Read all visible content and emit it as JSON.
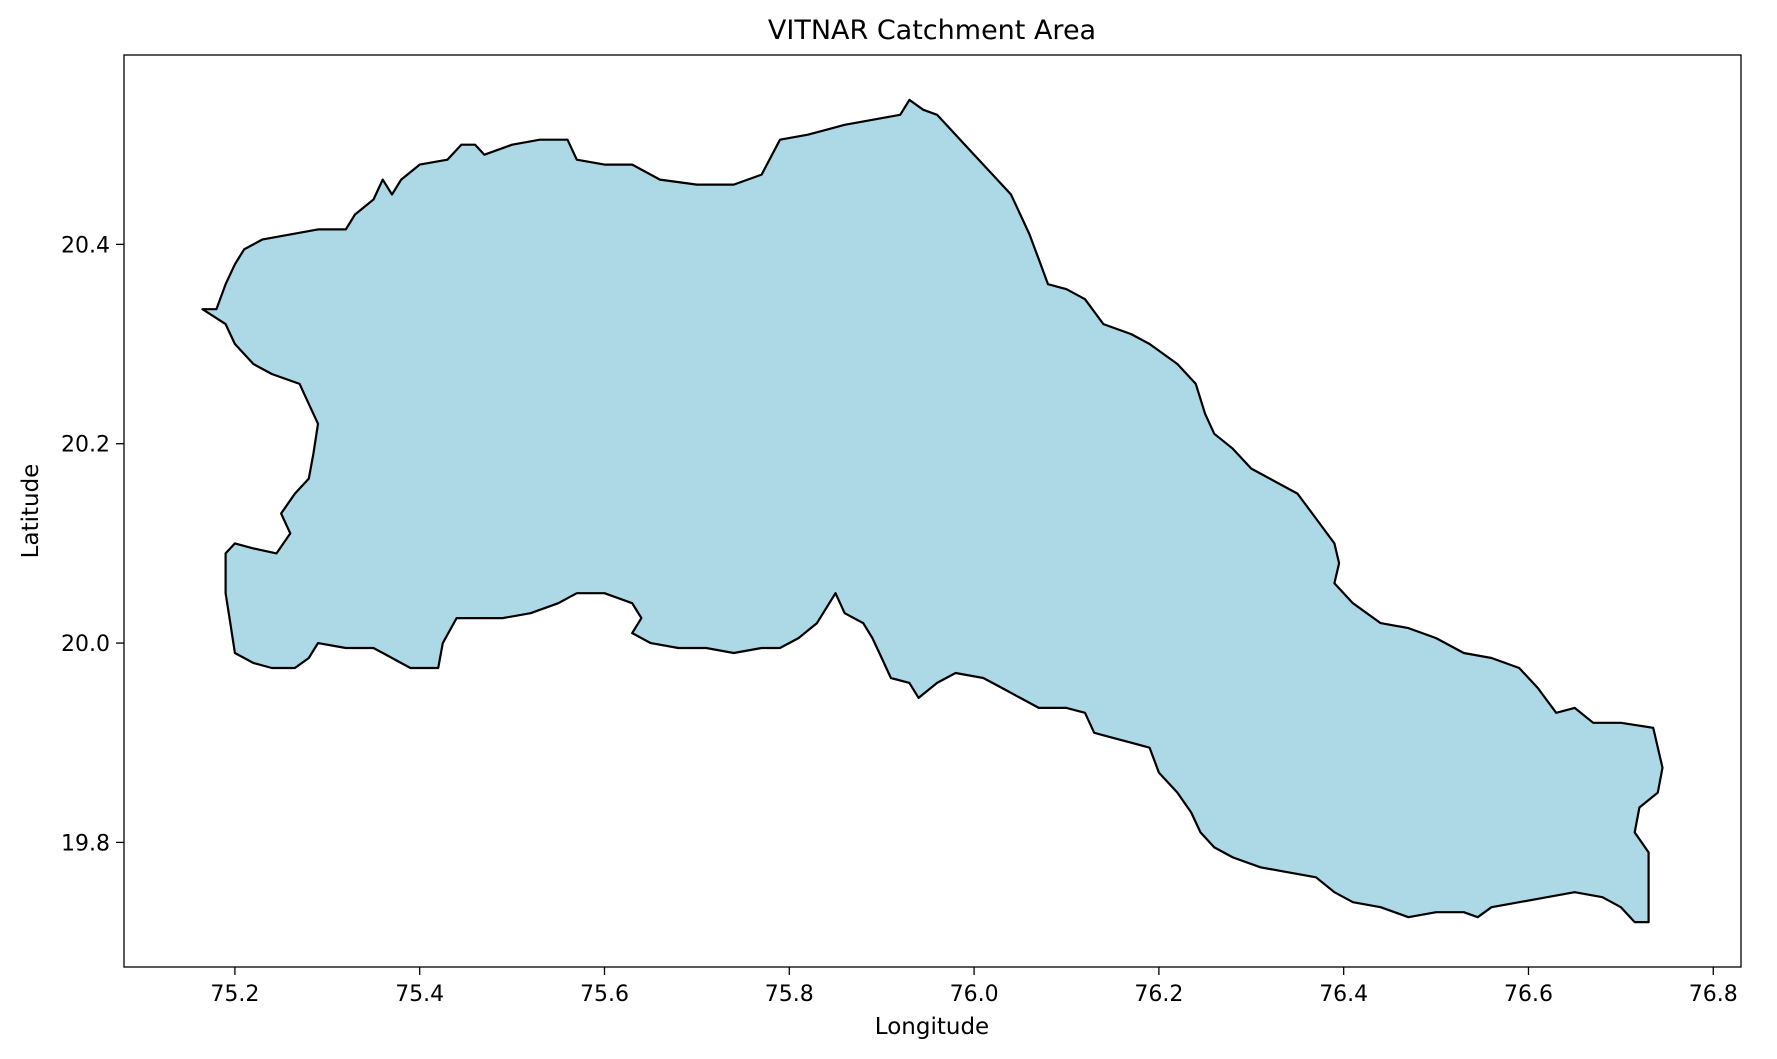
{
  "chart_data": {
    "type": "area",
    "title": "VITNAR Catchment Area",
    "xlabel": "Longitude",
    "ylabel": "Latitude",
    "xlim": [
      75.08,
      76.83
    ],
    "ylim": [
      19.675,
      20.59
    ],
    "xticks": [
      75.2,
      75.4,
      75.6,
      75.8,
      76.0,
      76.2,
      76.4,
      76.6,
      76.8
    ],
    "xtick_labels": [
      "75.2",
      "75.4",
      "75.6",
      "75.8",
      "76.0",
      "76.2",
      "76.4",
      "76.6",
      "76.8"
    ],
    "yticks": [
      19.8,
      20.0,
      20.2,
      20.4
    ],
    "ytick_labels": [
      "19.8",
      "20.0",
      "20.2",
      "20.4"
    ],
    "grid": false,
    "fill_color": "#add8e6",
    "edge_color": "#000000",
    "series": [
      {
        "points": [
          [
            75.165,
            20.335
          ],
          [
            75.18,
            20.335
          ],
          [
            75.19,
            20.36
          ],
          [
            75.2,
            20.38
          ],
          [
            75.21,
            20.395
          ],
          [
            75.23,
            20.405
          ],
          [
            75.26,
            20.41
          ],
          [
            75.29,
            20.415
          ],
          [
            75.32,
            20.415
          ],
          [
            75.33,
            20.43
          ],
          [
            75.35,
            20.445
          ],
          [
            75.36,
            20.465
          ],
          [
            75.37,
            20.45
          ],
          [
            75.38,
            20.465
          ],
          [
            75.4,
            20.48
          ],
          [
            75.43,
            20.485
          ],
          [
            75.445,
            20.5
          ],
          [
            75.46,
            20.5
          ],
          [
            75.47,
            20.49
          ],
          [
            75.5,
            20.5
          ],
          [
            75.53,
            20.505
          ],
          [
            75.56,
            20.505
          ],
          [
            75.57,
            20.485
          ],
          [
            75.6,
            20.48
          ],
          [
            75.63,
            20.48
          ],
          [
            75.66,
            20.465
          ],
          [
            75.7,
            20.46
          ],
          [
            75.74,
            20.46
          ],
          [
            75.77,
            20.47
          ],
          [
            75.79,
            20.505
          ],
          [
            75.82,
            20.51
          ],
          [
            75.84,
            20.515
          ],
          [
            75.86,
            20.52
          ],
          [
            75.89,
            20.525
          ],
          [
            75.92,
            20.53
          ],
          [
            75.93,
            20.545
          ],
          [
            75.945,
            20.535
          ],
          [
            75.96,
            20.53
          ],
          [
            75.98,
            20.51
          ],
          [
            76.0,
            20.49
          ],
          [
            76.02,
            20.47
          ],
          [
            76.04,
            20.45
          ],
          [
            76.06,
            20.41
          ],
          [
            76.07,
            20.385
          ],
          [
            76.08,
            20.36
          ],
          [
            76.1,
            20.355
          ],
          [
            76.12,
            20.345
          ],
          [
            76.14,
            20.32
          ],
          [
            76.17,
            20.31
          ],
          [
            76.19,
            20.3
          ],
          [
            76.22,
            20.28
          ],
          [
            76.24,
            20.26
          ],
          [
            76.25,
            20.23
          ],
          [
            76.26,
            20.21
          ],
          [
            76.28,
            20.195
          ],
          [
            76.3,
            20.175
          ],
          [
            76.33,
            20.16
          ],
          [
            76.35,
            20.15
          ],
          [
            76.37,
            20.125
          ],
          [
            76.39,
            20.1
          ],
          [
            76.395,
            20.08
          ],
          [
            76.39,
            20.06
          ],
          [
            76.41,
            20.04
          ],
          [
            76.44,
            20.02
          ],
          [
            76.47,
            20.015
          ],
          [
            76.5,
            20.005
          ],
          [
            76.53,
            19.99
          ],
          [
            76.56,
            19.985
          ],
          [
            76.59,
            19.975
          ],
          [
            76.61,
            19.955
          ],
          [
            76.63,
            19.93
          ],
          [
            76.65,
            19.935
          ],
          [
            76.67,
            19.92
          ],
          [
            76.7,
            19.92
          ],
          [
            76.735,
            19.915
          ],
          [
            76.745,
            19.875
          ],
          [
            76.74,
            19.85
          ],
          [
            76.72,
            19.835
          ],
          [
            76.715,
            19.81
          ],
          [
            76.73,
            19.79
          ],
          [
            76.73,
            19.72
          ],
          [
            76.715,
            19.72
          ],
          [
            76.7,
            19.735
          ],
          [
            76.68,
            19.745
          ],
          [
            76.65,
            19.75
          ],
          [
            76.62,
            19.745
          ],
          [
            76.59,
            19.74
          ],
          [
            76.56,
            19.735
          ],
          [
            76.545,
            19.725
          ],
          [
            76.53,
            19.73
          ],
          [
            76.5,
            19.73
          ],
          [
            76.47,
            19.725
          ],
          [
            76.44,
            19.735
          ],
          [
            76.41,
            19.74
          ],
          [
            76.39,
            19.75
          ],
          [
            76.37,
            19.765
          ],
          [
            76.34,
            19.77
          ],
          [
            76.31,
            19.775
          ],
          [
            76.28,
            19.785
          ],
          [
            76.26,
            19.795
          ],
          [
            76.245,
            19.81
          ],
          [
            76.235,
            19.83
          ],
          [
            76.22,
            19.85
          ],
          [
            76.2,
            19.87
          ],
          [
            76.19,
            19.895
          ],
          [
            76.17,
            19.9
          ],
          [
            76.15,
            19.905
          ],
          [
            76.13,
            19.91
          ],
          [
            76.12,
            19.93
          ],
          [
            76.1,
            19.935
          ],
          [
            76.07,
            19.935
          ],
          [
            76.05,
            19.945
          ],
          [
            76.03,
            19.955
          ],
          [
            76.01,
            19.965
          ],
          [
            75.98,
            19.97
          ],
          [
            75.96,
            19.96
          ],
          [
            75.94,
            19.945
          ],
          [
            75.93,
            19.96
          ],
          [
            75.91,
            19.965
          ],
          [
            75.9,
            19.985
          ],
          [
            75.89,
            20.005
          ],
          [
            75.88,
            20.02
          ],
          [
            75.86,
            20.03
          ],
          [
            75.85,
            20.05
          ],
          [
            75.84,
            20.035
          ],
          [
            75.83,
            20.02
          ],
          [
            75.81,
            20.005
          ],
          [
            75.79,
            19.995
          ],
          [
            75.77,
            19.995
          ],
          [
            75.74,
            19.99
          ],
          [
            75.71,
            19.995
          ],
          [
            75.68,
            19.995
          ],
          [
            75.65,
            20.0
          ],
          [
            75.63,
            20.01
          ],
          [
            75.64,
            20.025
          ],
          [
            75.63,
            20.04
          ],
          [
            75.6,
            20.05
          ],
          [
            75.57,
            20.05
          ],
          [
            75.55,
            20.04
          ],
          [
            75.52,
            20.03
          ],
          [
            75.49,
            20.025
          ],
          [
            75.46,
            20.025
          ],
          [
            75.44,
            20.025
          ],
          [
            75.425,
            20.0
          ],
          [
            75.42,
            19.975
          ],
          [
            75.39,
            19.975
          ],
          [
            75.37,
            19.985
          ],
          [
            75.35,
            19.995
          ],
          [
            75.32,
            19.995
          ],
          [
            75.29,
            20.0
          ],
          [
            75.28,
            19.985
          ],
          [
            75.265,
            19.975
          ],
          [
            75.24,
            19.975
          ],
          [
            75.22,
            19.98
          ],
          [
            75.2,
            19.99
          ],
          [
            75.195,
            20.02
          ],
          [
            75.19,
            20.05
          ],
          [
            75.19,
            20.09
          ],
          [
            75.2,
            20.1
          ],
          [
            75.22,
            20.095
          ],
          [
            75.245,
            20.09
          ],
          [
            75.26,
            20.11
          ],
          [
            75.25,
            20.13
          ],
          [
            75.265,
            20.15
          ],
          [
            75.28,
            20.165
          ],
          [
            75.285,
            20.19
          ],
          [
            75.29,
            20.22
          ],
          [
            75.28,
            20.24
          ],
          [
            75.27,
            20.26
          ],
          [
            75.24,
            20.27
          ],
          [
            75.22,
            20.28
          ],
          [
            75.2,
            20.3
          ],
          [
            75.19,
            20.32
          ]
        ]
      }
    ]
  }
}
